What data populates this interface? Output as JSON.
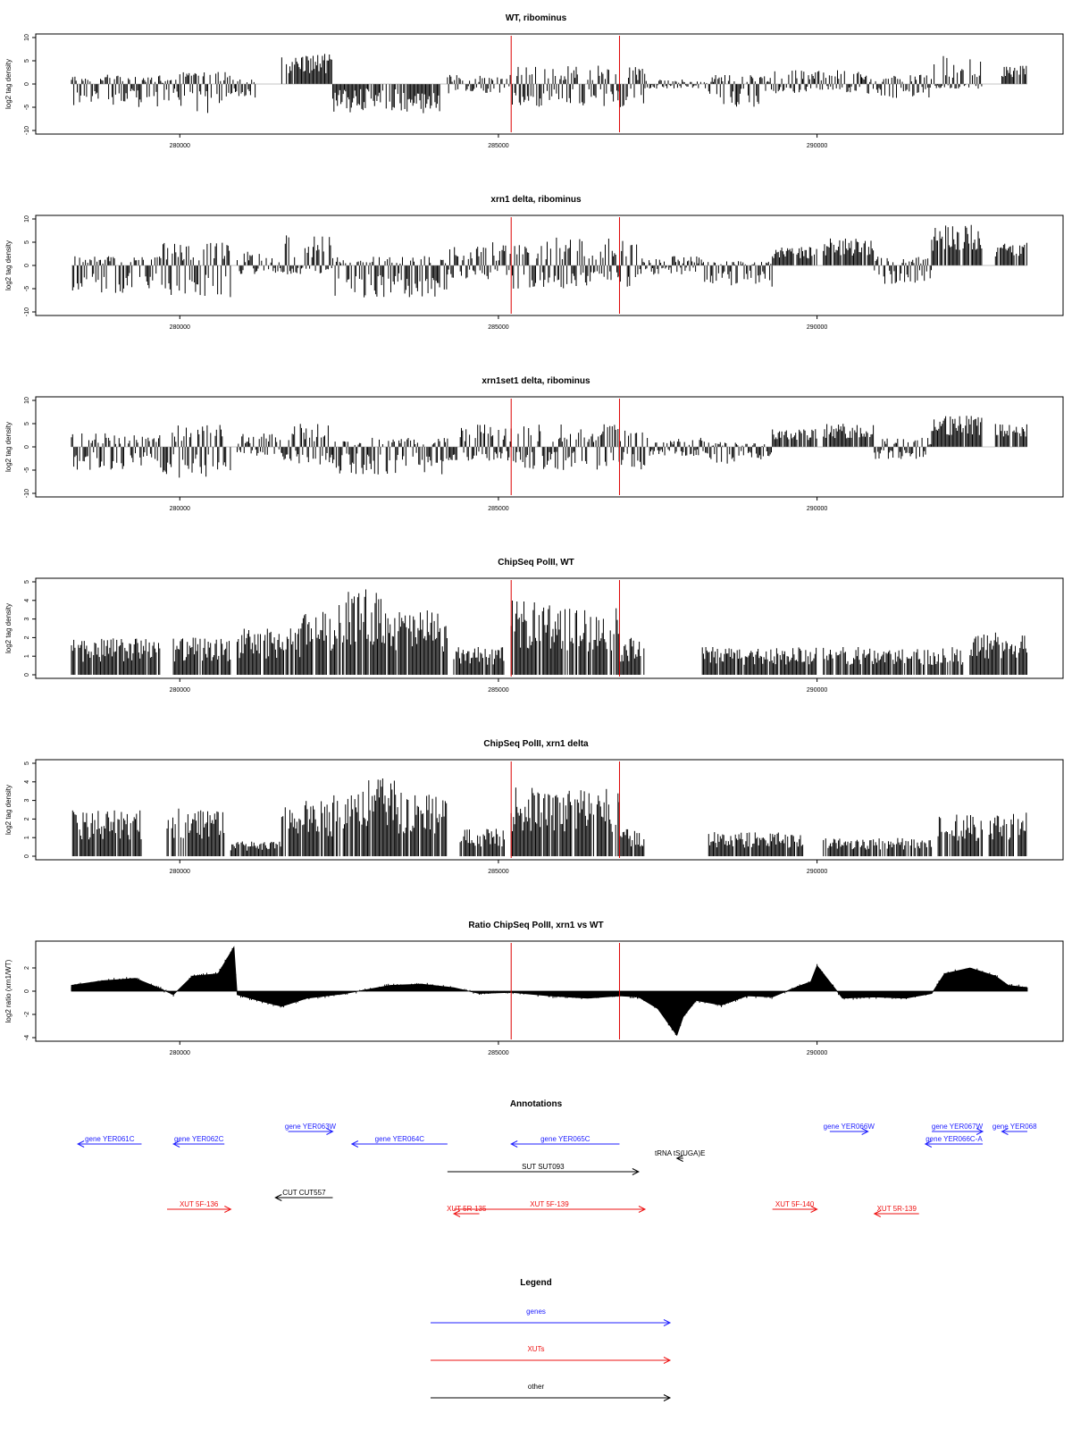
{
  "colors": {
    "genes": "#1f1fff",
    "xuts": "#ee1111",
    "other": "#000000",
    "marker": "#dd0000",
    "bars": "#000000"
  },
  "x_domain": [
    278300,
    293300
  ],
  "markers": [
    285200,
    286900
  ],
  "chart_data": [
    {
      "type": "bar",
      "title": "WT, ribominus",
      "ylabel": "log2 tag density",
      "ylim": [
        -10,
        10
      ],
      "yticks": [
        "-10",
        "-5",
        "0",
        "5",
        "10"
      ],
      "xticks": [
        "280000",
        "285000",
        "290000"
      ],
      "profile": [
        {
          "x": [
            278300,
            279700
          ],
          "y": [
            -5,
            2
          ]
        },
        {
          "x": [
            279700,
            280000
          ],
          "y": [
            -4,
            1
          ]
        },
        {
          "x": [
            280000,
            280800
          ],
          "y": [
            -7,
            3
          ]
        },
        {
          "x": [
            280800,
            281200
          ],
          "y": [
            -3,
            1
          ]
        },
        {
          "x": [
            281600,
            282400
          ],
          "y": [
            0,
            6.5
          ]
        },
        {
          "x": [
            282400,
            284100
          ],
          "y": [
            -6.5,
            0
          ]
        },
        {
          "x": [
            284200,
            285200
          ],
          "y": [
            -2,
            2
          ]
        },
        {
          "x": [
            285200,
            287300
          ],
          "y": [
            -5,
            4
          ]
        },
        {
          "x": [
            287300,
            288300
          ],
          "y": [
            -1,
            1
          ]
        },
        {
          "x": [
            288300,
            289300
          ],
          "y": [
            -5,
            2
          ]
        },
        {
          "x": [
            289300,
            290700
          ],
          "y": [
            -2,
            3
          ]
        },
        {
          "x": [
            290700,
            291800
          ],
          "y": [
            -3,
            2
          ]
        },
        {
          "x": [
            291800,
            292600
          ],
          "y": [
            -1,
            6.5
          ]
        },
        {
          "x": [
            292900,
            293300
          ],
          "y": [
            0,
            4
          ]
        }
      ]
    },
    {
      "type": "bar",
      "title": "xrn1 delta, ribominus",
      "ylabel": "log2 tag density",
      "ylim": [
        -10,
        10
      ],
      "yticks": [
        "-10",
        "-5",
        "0",
        "5",
        "10"
      ],
      "xticks": [
        "280000",
        "285000",
        "290000"
      ],
      "profile": [
        {
          "x": [
            278300,
            279300
          ],
          "y": [
            -6,
            2
          ]
        },
        {
          "x": [
            279300,
            279700
          ],
          "y": [
            -5,
            2
          ]
        },
        {
          "x": [
            279700,
            280800
          ],
          "y": [
            -7,
            5
          ]
        },
        {
          "x": [
            280900,
            281600
          ],
          "y": [
            -2,
            3
          ]
        },
        {
          "x": [
            281600,
            282400
          ],
          "y": [
            -2,
            6.5
          ]
        },
        {
          "x": [
            282400,
            284200
          ],
          "y": [
            -7,
            2
          ]
        },
        {
          "x": [
            284200,
            285200
          ],
          "y": [
            -3,
            5
          ]
        },
        {
          "x": [
            285200,
            287200
          ],
          "y": [
            -5,
            6
          ]
        },
        {
          "x": [
            287200,
            288200
          ],
          "y": [
            -2,
            2
          ]
        },
        {
          "x": [
            288200,
            289300
          ],
          "y": [
            -5,
            1
          ]
        },
        {
          "x": [
            289300,
            290000
          ],
          "y": [
            0,
            4
          ]
        },
        {
          "x": [
            290100,
            290900
          ],
          "y": [
            0,
            6
          ]
        },
        {
          "x": [
            290900,
            291800
          ],
          "y": [
            -4,
            2
          ]
        },
        {
          "x": [
            291800,
            292600
          ],
          "y": [
            0,
            9
          ]
        },
        {
          "x": [
            292800,
            293300
          ],
          "y": [
            0,
            5
          ]
        }
      ]
    },
    {
      "type": "bar",
      "title": "xrn1set1 delta, ribominus",
      "ylabel": "log2 tag density",
      "ylim": [
        -10,
        10
      ],
      "yticks": [
        "-10",
        "-5",
        "0",
        "5",
        "10"
      ],
      "xticks": [
        "280000",
        "285000",
        "290000"
      ],
      "profile": [
        {
          "x": [
            278300,
            279700
          ],
          "y": [
            -5,
            3
          ]
        },
        {
          "x": [
            279700,
            280800
          ],
          "y": [
            -7,
            5
          ]
        },
        {
          "x": [
            280900,
            281600
          ],
          "y": [
            -2,
            3
          ]
        },
        {
          "x": [
            281600,
            282400
          ],
          "y": [
            -4,
            5
          ]
        },
        {
          "x": [
            282400,
            284200
          ],
          "y": [
            -6,
            2
          ]
        },
        {
          "x": [
            284200,
            285200
          ],
          "y": [
            -3,
            5
          ]
        },
        {
          "x": [
            285200,
            287300
          ],
          "y": [
            -5,
            5
          ]
        },
        {
          "x": [
            287300,
            288300
          ],
          "y": [
            -2,
            2
          ]
        },
        {
          "x": [
            288300,
            289300
          ],
          "y": [
            -4,
            1
          ]
        },
        {
          "x": [
            289300,
            290000
          ],
          "y": [
            0,
            4
          ]
        },
        {
          "x": [
            290100,
            290900
          ],
          "y": [
            0,
            5
          ]
        },
        {
          "x": [
            290900,
            291800
          ],
          "y": [
            -3,
            2
          ]
        },
        {
          "x": [
            291800,
            292600
          ],
          "y": [
            0,
            7
          ]
        },
        {
          "x": [
            292800,
            293300
          ],
          "y": [
            0,
            5
          ]
        }
      ]
    },
    {
      "type": "bar",
      "title": "ChipSeq PolII, WT",
      "ylabel": "log2 tag density",
      "ylim": [
        0,
        5
      ],
      "yticks": [
        "0",
        "1",
        "2",
        "3",
        "4",
        "5"
      ],
      "xticks": [
        "280000",
        "285000",
        "290000"
      ],
      "profile": [
        {
          "x": [
            278300,
            279700
          ],
          "y": [
            0,
            2
          ]
        },
        {
          "x": [
            279900,
            280800
          ],
          "y": [
            0,
            2
          ]
        },
        {
          "x": [
            280900,
            281900
          ],
          "y": [
            0,
            2.5
          ]
        },
        {
          "x": [
            281900,
            282500
          ],
          "y": [
            0,
            3.5
          ]
        },
        {
          "x": [
            282500,
            283300
          ],
          "y": [
            0,
            4.6
          ]
        },
        {
          "x": [
            283300,
            284200
          ],
          "y": [
            0,
            3.5
          ]
        },
        {
          "x": [
            284300,
            285100
          ],
          "y": [
            0,
            1.5
          ]
        },
        {
          "x": [
            285200,
            285900
          ],
          "y": [
            0,
            4.0
          ]
        },
        {
          "x": [
            285900,
            286900
          ],
          "y": [
            0,
            3.6
          ]
        },
        {
          "x": [
            286900,
            287300
          ],
          "y": [
            0,
            2
          ]
        },
        {
          "x": [
            288200,
            290000
          ],
          "y": [
            0,
            1.5
          ]
        },
        {
          "x": [
            290100,
            292300
          ],
          "y": [
            0,
            1.5
          ]
        },
        {
          "x": [
            292400,
            293300
          ],
          "y": [
            0,
            2.3
          ]
        }
      ]
    },
    {
      "type": "bar",
      "title": "ChipSeq PolII, xrn1 delta",
      "ylabel": "log2 tag density",
      "ylim": [
        0,
        5
      ],
      "yticks": [
        "0",
        "1",
        "2",
        "3",
        "4",
        "5"
      ],
      "xticks": [
        "280000",
        "285000",
        "290000"
      ],
      "profile": [
        {
          "x": [
            278300,
            279400
          ],
          "y": [
            0,
            2.5
          ]
        },
        {
          "x": [
            279800,
            280700
          ],
          "y": [
            0,
            2.7
          ]
        },
        {
          "x": [
            280800,
            281600
          ],
          "y": [
            0,
            0.8
          ]
        },
        {
          "x": [
            281600,
            282400
          ],
          "y": [
            0,
            3.0
          ]
        },
        {
          "x": [
            282400,
            283400
          ],
          "y": [
            0,
            4.2
          ]
        },
        {
          "x": [
            283400,
            284200
          ],
          "y": [
            0,
            3.5
          ]
        },
        {
          "x": [
            284400,
            285100
          ],
          "y": [
            0,
            1.5
          ]
        },
        {
          "x": [
            285200,
            286900
          ],
          "y": [
            0,
            3.7
          ]
        },
        {
          "x": [
            286900,
            287300
          ],
          "y": [
            0,
            1.5
          ]
        },
        {
          "x": [
            288300,
            289800
          ],
          "y": [
            0,
            1.3
          ]
        },
        {
          "x": [
            290100,
            291800
          ],
          "y": [
            0,
            1.0
          ]
        },
        {
          "x": [
            291900,
            292600
          ],
          "y": [
            0,
            2.3
          ]
        },
        {
          "x": [
            292700,
            293300
          ],
          "y": [
            0,
            2.5
          ]
        }
      ]
    },
    {
      "type": "area",
      "title": "Ratio ChipSeq PolII, xrn1 vs WT",
      "ylabel": "log2 ratio (xrn1/WT)",
      "ylim": [
        -4,
        4
      ],
      "yticks": [
        "-4",
        "-2",
        "0",
        "2"
      ],
      "xticks": [
        "280000",
        "285000",
        "290000"
      ],
      "x": [
        278300,
        278800,
        279300,
        279700,
        279900,
        280200,
        280600,
        280850,
        280900,
        281300,
        281600,
        282000,
        282600,
        283300,
        283800,
        284300,
        284700,
        285200,
        285800,
        286400,
        286900,
        287200,
        287500,
        287800,
        287900,
        288100,
        288500,
        288900,
        289300,
        289700,
        289900,
        290000,
        290400,
        290900,
        291400,
        291800,
        292000,
        292400,
        292800,
        293000,
        293300
      ],
      "y": [
        0.5,
        0.9,
        1.1,
        0.2,
        -0.3,
        1.3,
        1.5,
        3.8,
        -0.3,
        -0.9,
        -1.3,
        -0.6,
        -0.2,
        0.5,
        0.6,
        0.3,
        -0.2,
        -0.1,
        -0.4,
        -0.6,
        -0.4,
        -0.5,
        -1.5,
        -3.8,
        -2.2,
        -0.8,
        -1.2,
        -0.4,
        -0.5,
        0.4,
        0.8,
        2.2,
        -0.6,
        -0.5,
        -0.6,
        -0.2,
        1.5,
        2.0,
        1.3,
        0.5,
        0.3
      ]
    }
  ],
  "annotations": {
    "title": "Annotations",
    "tracks": [
      {
        "label": "gene YER061C",
        "cls": "genes",
        "start": 279400,
        "end": 278400,
        "row": 0
      },
      {
        "label": "gene YER062C",
        "cls": "genes",
        "start": 280700,
        "end": 279900,
        "row": 0
      },
      {
        "label": "gene YER063W",
        "cls": "genes",
        "start": 281700,
        "end": 282400,
        "row": -1
      },
      {
        "label": "gene YER064C",
        "cls": "genes",
        "start": 284200,
        "end": 282700,
        "row": 0
      },
      {
        "label": "gene YER065C",
        "cls": "genes",
        "start": 286900,
        "end": 285200,
        "row": 0
      },
      {
        "label": "gene YER066W",
        "cls": "genes",
        "start": 290200,
        "end": 290800,
        "row": -1
      },
      {
        "label": "gene YER067W",
        "cls": "genes",
        "start": 291800,
        "end": 292600,
        "row": -1
      },
      {
        "label": "gene YER066C-A",
        "cls": "genes",
        "start": 292600,
        "end": 291700,
        "row": 0
      },
      {
        "label": "gene YER068",
        "cls": "genes",
        "start": 293300,
        "end": 292900,
        "row": -1
      },
      {
        "label": "tRNA tS(UGA)E",
        "cls": "other",
        "start": 287900,
        "end": 287800,
        "row": 1
      },
      {
        "label": "SUT SUT093",
        "cls": "other",
        "start": 284200,
        "end": 287200,
        "row": 2
      },
      {
        "label": "CUT CUT557",
        "cls": "other",
        "start": 282400,
        "end": 281500,
        "row": 3
      },
      {
        "label": "XUT 5F-136",
        "cls": "xuts",
        "start": 279800,
        "end": 280800,
        "row": 4
      },
      {
        "label": "XUT 5R-135",
        "cls": "xuts",
        "start": 284700,
        "end": 284300,
        "row": 4.5
      },
      {
        "label": "XUT 5F-139",
        "cls": "xuts",
        "start": 284300,
        "end": 287300,
        "row": 4
      },
      {
        "label": "XUT 5F-140",
        "cls": "xuts",
        "start": 289300,
        "end": 290000,
        "row": 4
      },
      {
        "label": "XUT 5R-139",
        "cls": "xuts",
        "start": 291600,
        "end": 290900,
        "row": 4.5
      }
    ]
  },
  "legend": {
    "title": "Legend",
    "items": [
      {
        "label": "genes",
        "cls": "genes"
      },
      {
        "label": "XUTs",
        "cls": "xuts"
      },
      {
        "label": "other",
        "cls": "other"
      }
    ]
  }
}
